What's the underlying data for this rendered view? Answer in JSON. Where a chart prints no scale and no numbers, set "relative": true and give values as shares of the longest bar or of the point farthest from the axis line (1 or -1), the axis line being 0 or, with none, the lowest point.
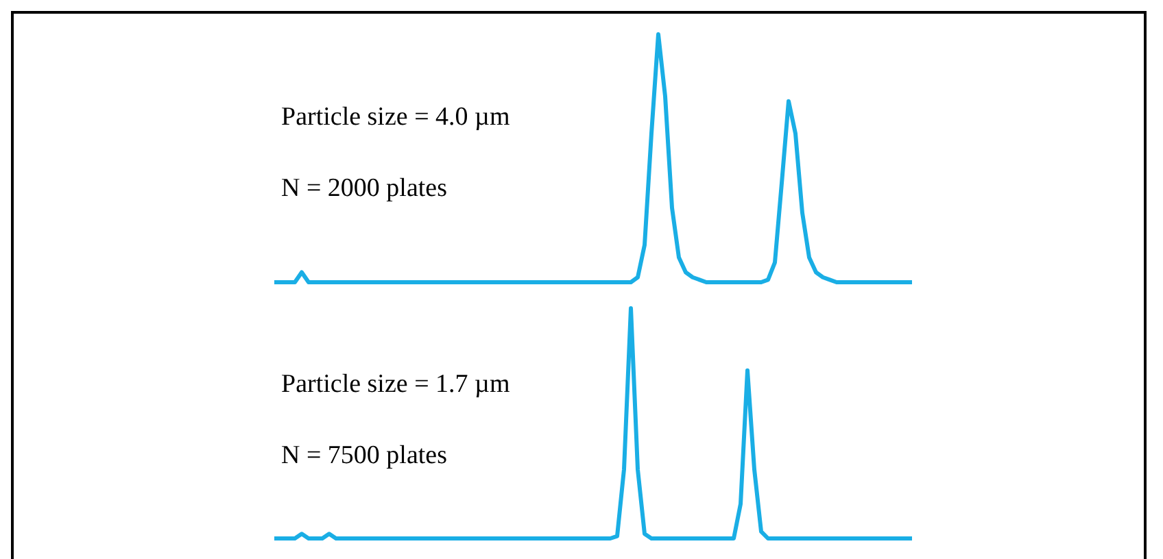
{
  "chart_data": [
    {
      "type": "line",
      "relative": true,
      "marker": "none",
      "annotations": [
        "Particle size = 4.0 µm",
        "N = 2000 plates"
      ],
      "categories": [
        null,
        null,
        null,
        null,
        null,
        null,
        null,
        null,
        null,
        null,
        null,
        null,
        null,
        null,
        null,
        null,
        null,
        null,
        null,
        null,
        null,
        null,
        null,
        null,
        null,
        null,
        null,
        null,
        null,
        null,
        null,
        null,
        null,
        null,
        null,
        null,
        null,
        null,
        null,
        null,
        null,
        null,
        null,
        null,
        null,
        null,
        null,
        null,
        null,
        null,
        null,
        null,
        null,
        null,
        null,
        null,
        null,
        null,
        null,
        null,
        null,
        null,
        null,
        null,
        null,
        null,
        null,
        null,
        null,
        null,
        null,
        null,
        null,
        null,
        null,
        null,
        null,
        null,
        null,
        null,
        null,
        null,
        null,
        null,
        null,
        null,
        null,
        null,
        null,
        null,
        null,
        null,
        null,
        null
      ],
      "series": [
        {
          "color": "#1aaee5",
          "values": [
            0,
            0,
            0,
            0,
            0.04,
            0,
            0,
            0,
            0,
            0,
            0,
            0,
            0,
            0,
            0,
            0,
            0,
            0,
            0,
            0,
            0,
            0,
            0,
            0,
            0,
            0,
            0,
            0,
            0,
            0,
            0,
            0,
            0,
            0,
            0,
            0,
            0,
            0,
            0,
            0,
            0,
            0,
            0,
            0,
            0,
            0,
            0,
            0,
            0,
            0,
            0,
            0,
            0,
            0.02,
            0.15,
            0.6,
            1,
            0.75,
            0.3,
            0.1,
            0.04,
            0.02,
            0.01,
            0,
            0,
            0,
            0,
            0,
            0,
            0,
            0,
            0,
            0.01,
            0.08,
            0.4,
            0.73,
            0.6,
            0.28,
            0.1,
            0.04,
            0.02,
            0.01,
            0,
            0,
            0,
            0,
            0,
            0,
            0,
            0,
            0,
            0,
            0,
            0
          ]
        }
      ]
    },
    {
      "type": "line",
      "relative": true,
      "marker": "none",
      "annotations": [
        "Particle size = 1.7 µm",
        "N = 7500 plates"
      ],
      "categories": [
        null,
        null,
        null,
        null,
        null,
        null,
        null,
        null,
        null,
        null,
        null,
        null,
        null,
        null,
        null,
        null,
        null,
        null,
        null,
        null,
        null,
        null,
        null,
        null,
        null,
        null,
        null,
        null,
        null,
        null,
        null,
        null,
        null,
        null,
        null,
        null,
        null,
        null,
        null,
        null,
        null,
        null,
        null,
        null,
        null,
        null,
        null,
        null,
        null,
        null,
        null,
        null,
        null,
        null,
        null,
        null,
        null,
        null,
        null,
        null,
        null,
        null,
        null,
        null,
        null,
        null,
        null,
        null,
        null,
        null,
        null,
        null,
        null,
        null,
        null,
        null,
        null,
        null,
        null,
        null,
        null,
        null,
        null,
        null,
        null,
        null,
        null,
        null,
        null,
        null,
        null,
        null,
        null,
        null
      ],
      "series": [
        {
          "color": "#1aaee5",
          "values": [
            0,
            0,
            0,
            0,
            0.02,
            0,
            0,
            0,
            0.02,
            0,
            0,
            0,
            0,
            0,
            0,
            0,
            0,
            0,
            0,
            0,
            0,
            0,
            0,
            0,
            0,
            0,
            0,
            0,
            0,
            0,
            0,
            0,
            0,
            0,
            0,
            0,
            0,
            0,
            0,
            0,
            0,
            0,
            0,
            0,
            0,
            0,
            0,
            0,
            0,
            0,
            0.01,
            0.3,
            1,
            0.3,
            0.02,
            0,
            0,
            0,
            0,
            0,
            0,
            0,
            0,
            0,
            0,
            0,
            0,
            0,
            0.15,
            0.73,
            0.3,
            0.03,
            0,
            0,
            0,
            0,
            0,
            0,
            0,
            0,
            0,
            0,
            0,
            0,
            0,
            0,
            0,
            0,
            0,
            0,
            0,
            0,
            0,
            0
          ]
        }
      ]
    }
  ]
}
